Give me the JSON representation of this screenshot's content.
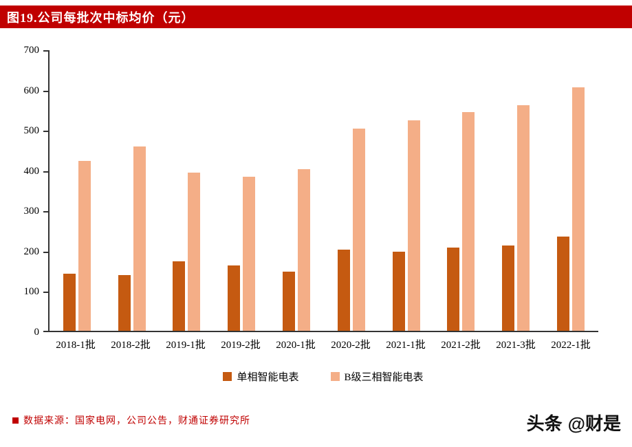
{
  "header": {
    "title": "图19.公司每批次中标均价（元）"
  },
  "chart_data": {
    "type": "bar",
    "title": "公司每批次中标均价（元）",
    "categories": [
      "2018-1批",
      "2018-2批",
      "2019-1批",
      "2019-2批",
      "2020-1批",
      "2020-2批",
      "2021-1批",
      "2021-2批",
      "2021-3批",
      "2022-1批"
    ],
    "series": [
      {
        "name": "单相智能电表",
        "color": "#C55A11",
        "values": [
          142,
          138,
          172,
          162,
          147,
          202,
          196,
          207,
          211,
          234
        ]
      },
      {
        "name": "B级三相智能电表",
        "color": "#F4AE87",
        "values": [
          422,
          458,
          392,
          383,
          401,
          502,
          522,
          543,
          560,
          604
        ]
      }
    ],
    "xlabel": "",
    "ylabel": "",
    "ylim": [
      0,
      700
    ],
    "yticks": [
      0,
      100,
      200,
      300,
      400,
      500,
      600,
      700
    ],
    "grid": false,
    "legend_position": "bottom"
  },
  "footer": {
    "source": "数据来源：国家电网，公司公告，财通证券研究所"
  },
  "watermark": {
    "brand": "头条",
    "handle": "@财是"
  }
}
